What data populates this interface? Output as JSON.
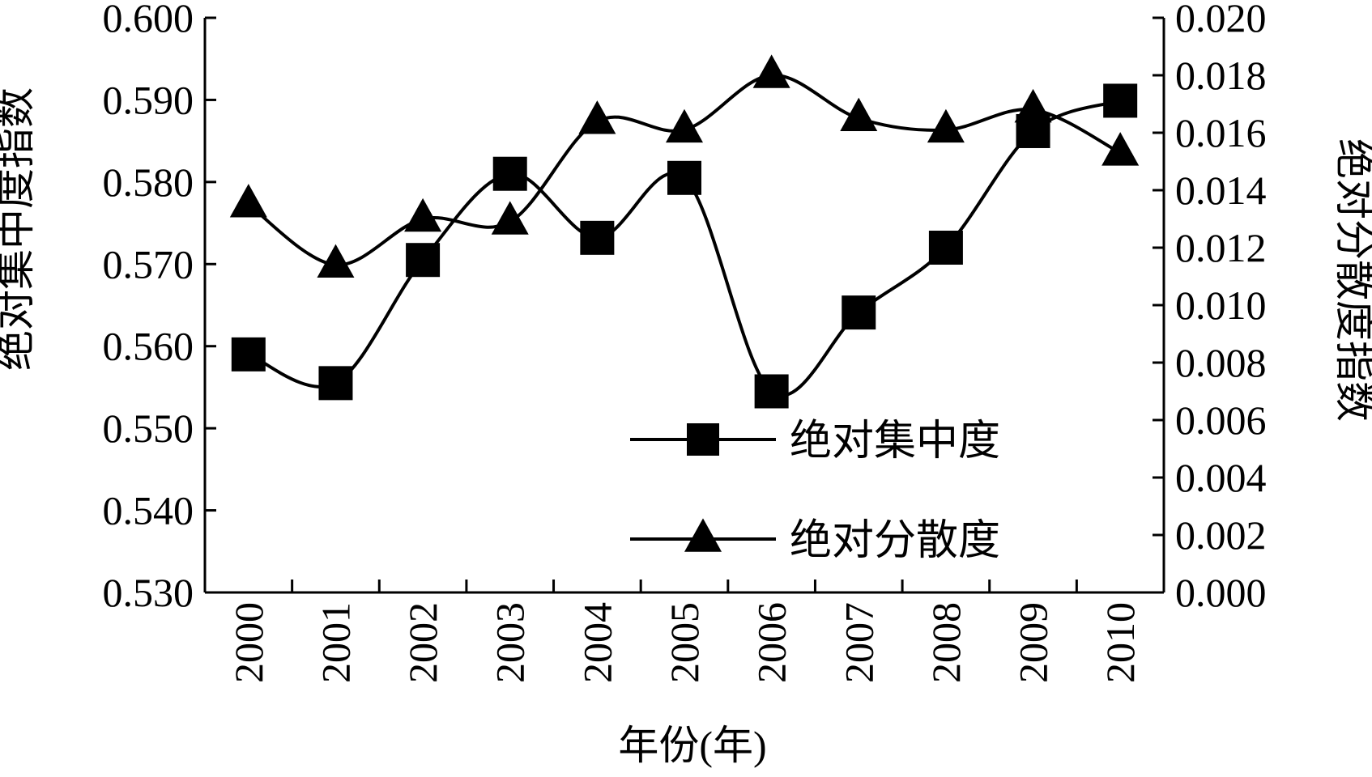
{
  "chart_data": {
    "type": "line",
    "xlabel": "年份(年)",
    "ylabel": "绝对集中度指数",
    "y2label": "绝对分散度指数",
    "categories": [
      "2000",
      "2001",
      "2002",
      "2003",
      "2004",
      "2005",
      "2006",
      "2007",
      "2008",
      "2009",
      "2010"
    ],
    "ylim": [
      0.53,
      0.6
    ],
    "y_ticks": [
      "0.530",
      "0.540",
      "0.550",
      "0.560",
      "0.570",
      "0.580",
      "0.590",
      "0.600"
    ],
    "y2lim": [
      0.0,
      0.02
    ],
    "y2_ticks": [
      "0.000",
      "0.002",
      "0.004",
      "0.006",
      "0.008",
      "0.010",
      "0.012",
      "0.014",
      "0.016",
      "0.018",
      "0.020"
    ],
    "legend_position": "bottom-right",
    "grid": false,
    "series": [
      {
        "name": "绝对集中度",
        "axis": "left",
        "marker": "square",
        "values": [
          0.559,
          0.5555,
          0.5705,
          0.581,
          0.5732,
          0.5805,
          0.5545,
          0.5641,
          0.572,
          0.5862,
          0.5899
        ]
      },
      {
        "name": "绝对分散度",
        "axis": "right",
        "marker": "triangle",
        "values": [
          0.0135,
          0.0114,
          0.013,
          0.0129,
          0.0164,
          0.0161,
          0.018,
          0.0165,
          0.0161,
          0.0168,
          0.0153
        ]
      }
    ]
  }
}
